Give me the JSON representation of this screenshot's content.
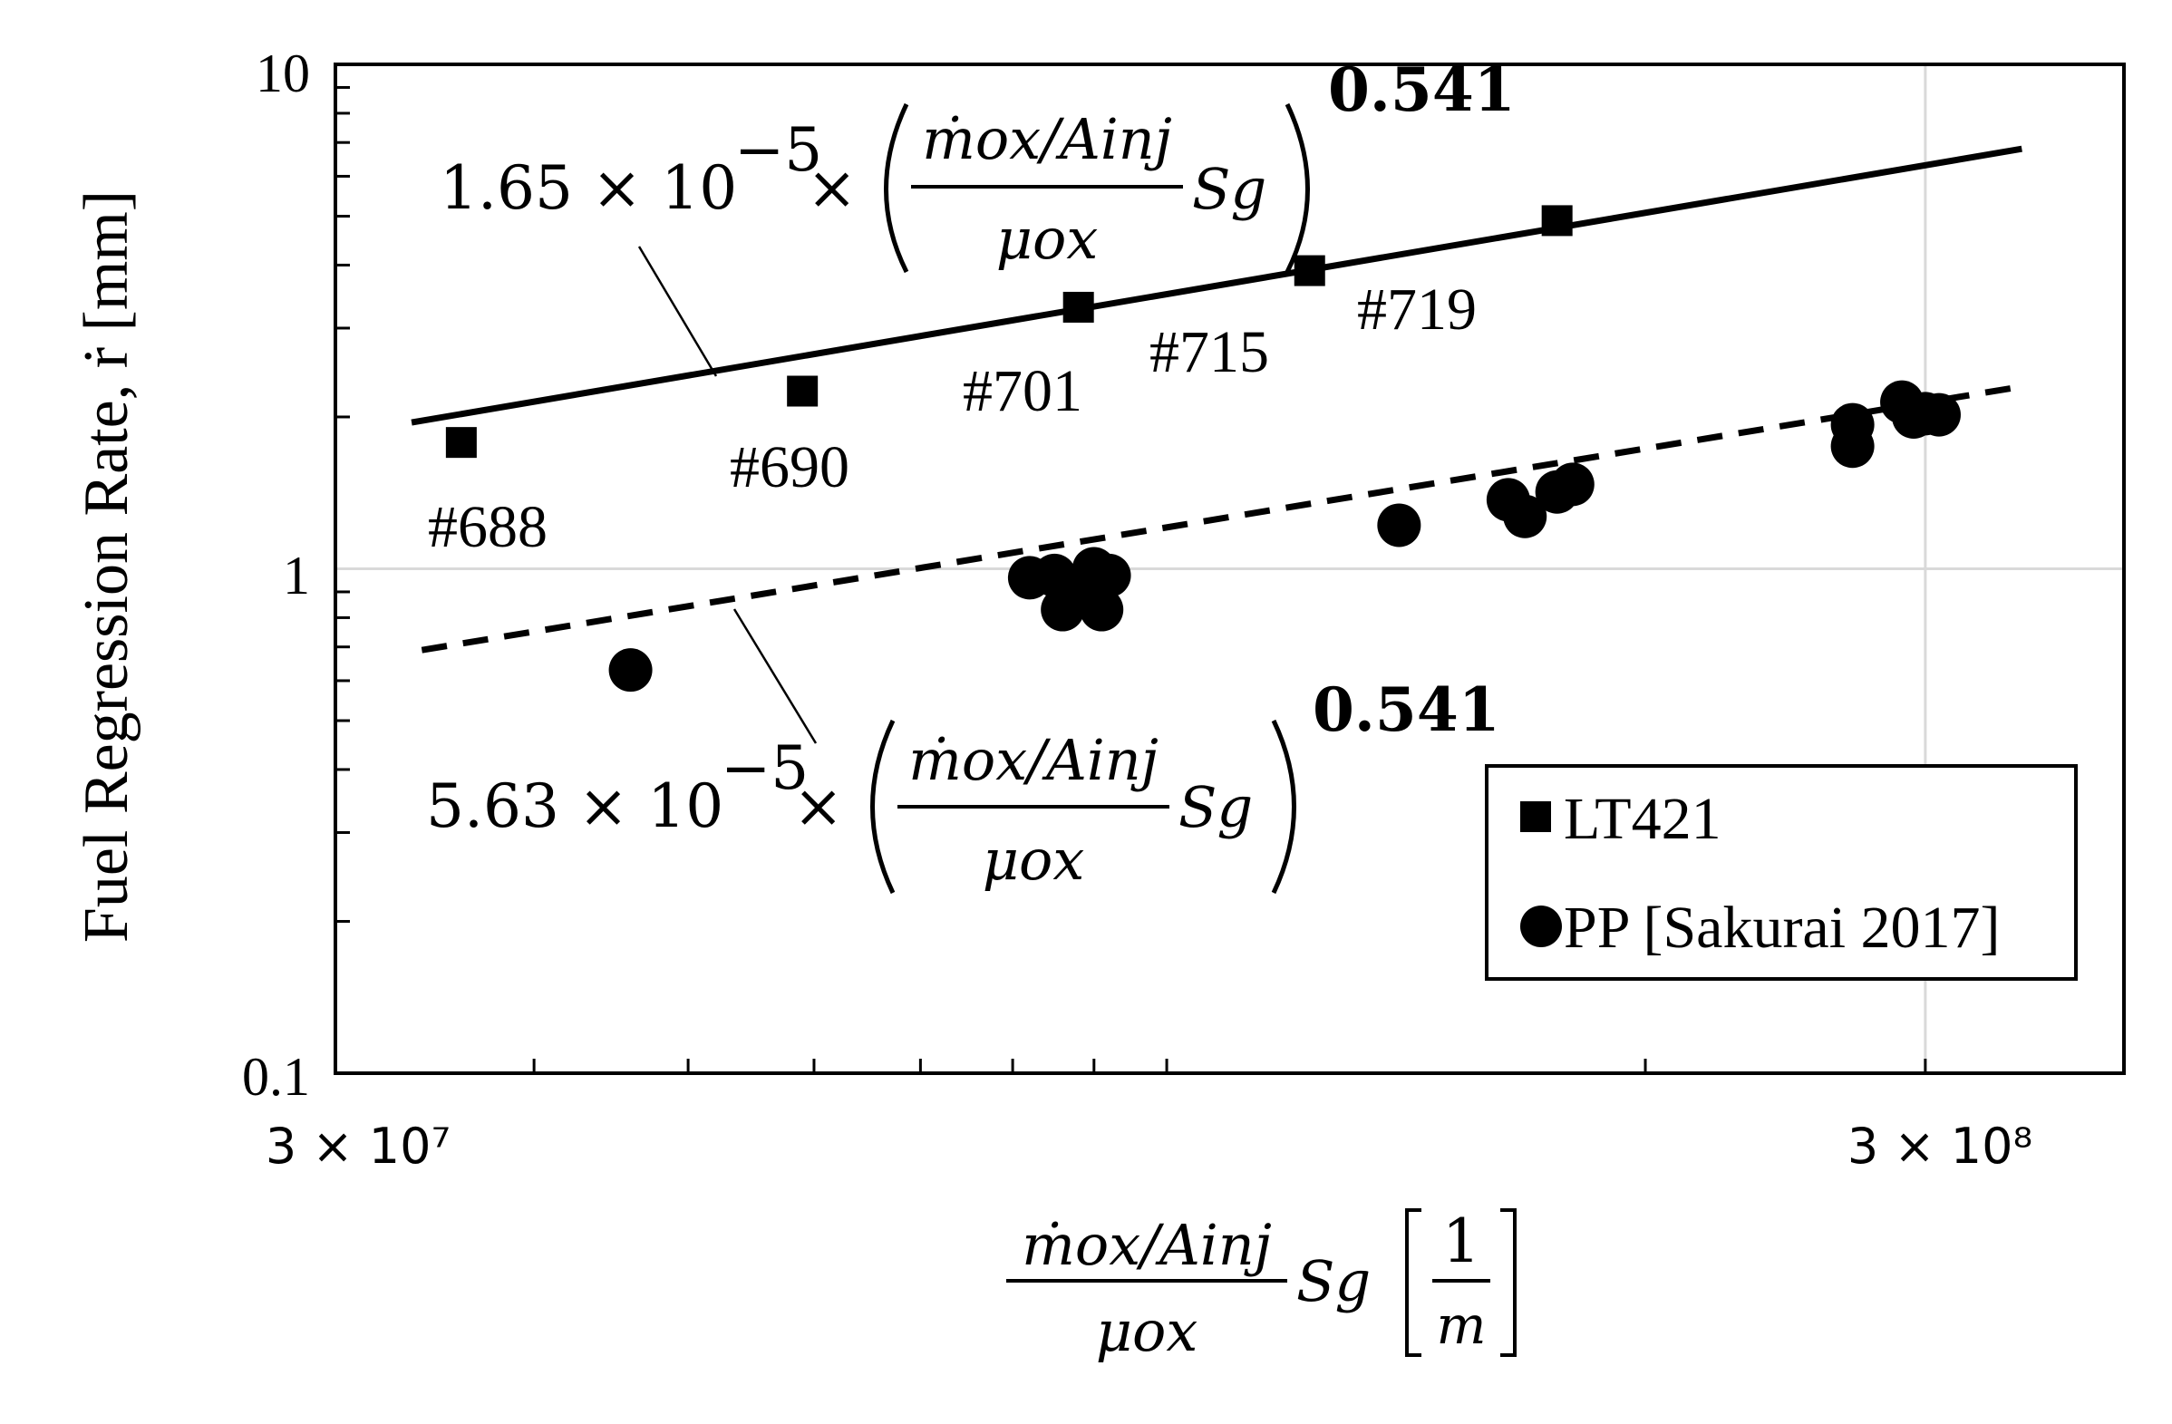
{
  "chart_data": {
    "type": "scatter",
    "xscale": "log",
    "yscale": "log",
    "xlim": [
      30000000,
      400000000
    ],
    "ylim": [
      0.1,
      10
    ],
    "grid": true,
    "x_tick_labels": [
      "3 × 10⁷",
      "3 × 10⁸"
    ],
    "x_tick_values": [
      30000000,
      300000000
    ],
    "y_tick_labels": [
      "0.1",
      "1",
      "10"
    ],
    "y_tick_values": [
      0.1,
      1,
      10
    ],
    "ylabel": "Fuel Regression Rate, ṙ [mm]",
    "xlabel": {
      "numerator": "ṁox/Ainj",
      "denominator": "μox",
      "suffix": "Sg",
      "unit_num": "1",
      "unit_den": "m"
    },
    "legend_position": "bottom-right",
    "series": [
      {
        "name": "LT421",
        "marker": "square",
        "points": [
          {
            "x": 36000000,
            "y": 1.78,
            "label": "#688"
          },
          {
            "x": 59000000,
            "y": 2.25,
            "label": "#690"
          },
          {
            "x": 88000000,
            "y": 3.3,
            "label": "#701"
          },
          {
            "x": 123000000,
            "y": 3.9,
            "label": "#715"
          },
          {
            "x": 176000000,
            "y": 4.9,
            "label": "#719"
          }
        ]
      },
      {
        "name": "PP [Sakurai 2017]",
        "marker": "circle",
        "points": [
          {
            "x": 46000000,
            "y": 0.63
          },
          {
            "x": 82000000,
            "y": 0.96
          },
          {
            "x": 85000000,
            "y": 0.97
          },
          {
            "x": 87000000,
            "y": 0.91
          },
          {
            "x": 86000000,
            "y": 0.83
          },
          {
            "x": 89000000,
            "y": 0.88
          },
          {
            "x": 91000000,
            "y": 0.83
          },
          {
            "x": 92000000,
            "y": 0.97
          },
          {
            "x": 90000000,
            "y": 1.0
          },
          {
            "x": 140000000,
            "y": 1.22
          },
          {
            "x": 164000000,
            "y": 1.37
          },
          {
            "x": 168000000,
            "y": 1.27
          },
          {
            "x": 176000000,
            "y": 1.42
          },
          {
            "x": 180000000,
            "y": 1.47
          },
          {
            "x": 270000000,
            "y": 1.75
          },
          {
            "x": 270000000,
            "y": 1.93
          },
          {
            "x": 290000000,
            "y": 2.14
          },
          {
            "x": 295000000,
            "y": 2.0
          },
          {
            "x": 300000000,
            "y": 2.03
          },
          {
            "x": 306000000,
            "y": 2.02
          }
        ]
      }
    ],
    "fits": [
      {
        "series": "LT421",
        "style": "solid",
        "x_range": [
          33500000,
          345000000
        ],
        "y_range": [
          1.95,
          6.8
        ],
        "equation": {
          "coef": "1.65 × 10",
          "exp": "−5",
          "times": "×",
          "frac_num": "ṁox/Ainj",
          "frac_den": "μox",
          "suffix": "Sg",
          "power": "0.541"
        }
      },
      {
        "series": "PP [Sakurai 2017]",
        "style": "dashed",
        "x_range": [
          34000000,
          340000000
        ],
        "y_range": [
          0.69,
          2.28
        ],
        "equation": {
          "coef": "5.63 × 10",
          "exp": "−5",
          "times": "×",
          "frac_num": "ṁox/Ainj",
          "frac_den": "μox",
          "suffix": "Sg",
          "power": "0.541"
        }
      }
    ]
  }
}
